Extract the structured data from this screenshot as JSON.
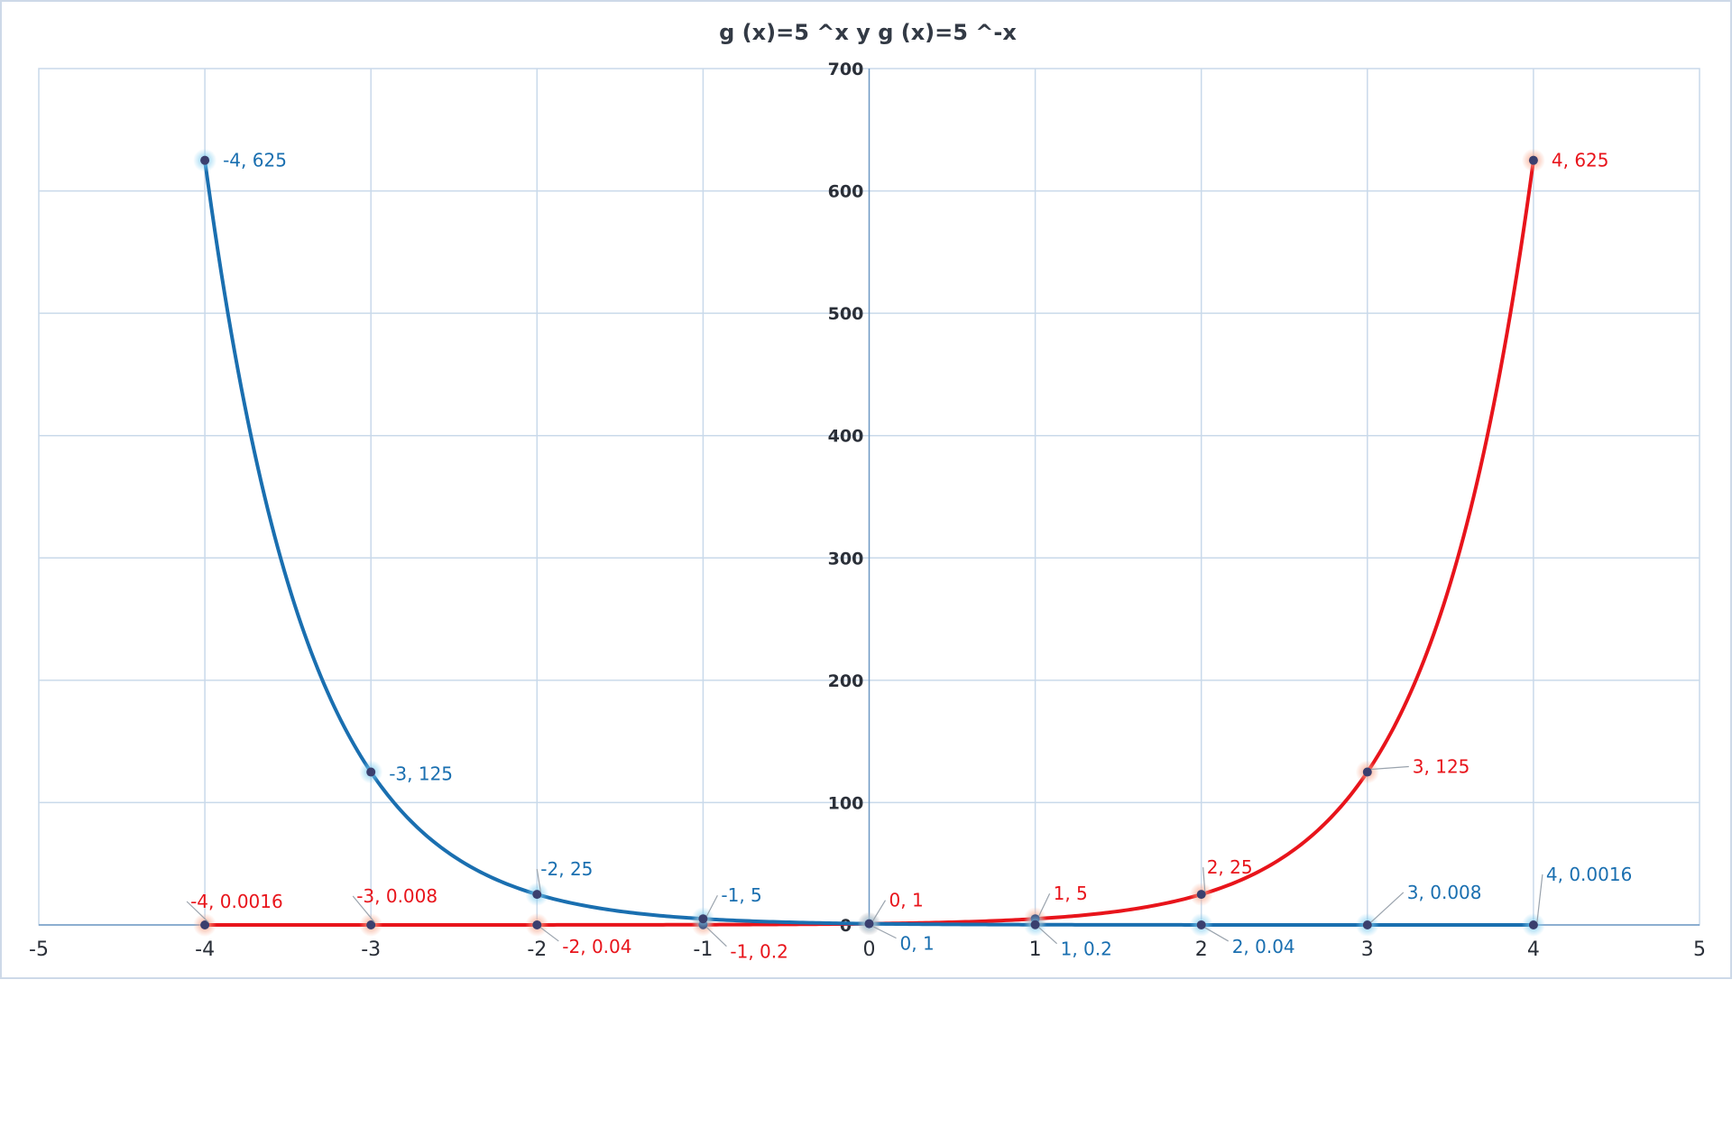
{
  "chart_data": {
    "type": "line",
    "title": "g (x)=5 ^x   y  g (x)=5 ^-x",
    "xlim": [
      -5,
      5
    ],
    "ylim": [
      0,
      700
    ],
    "x_ticks": [
      -5,
      -4,
      -3,
      -2,
      -1,
      0,
      1,
      2,
      3,
      4,
      5
    ],
    "y_ticks": [
      0,
      100,
      200,
      300,
      400,
      500,
      600,
      700
    ],
    "grid": true,
    "legend": "none",
    "series": [
      {
        "color": "#e8141b",
        "x": [
          -4,
          -3,
          -2,
          -1,
          0,
          1,
          2,
          3,
          4
        ],
        "y": [
          0.0016,
          0.008,
          0.04,
          0.2,
          1,
          5,
          25,
          125,
          625
        ],
        "labels": [
          "-4, 0.0016",
          "-3, 0.008",
          "-2, 0.04",
          "-1, 0.2",
          "0, 1",
          "1, 5",
          "2, 25",
          "3, 125",
          "4, 625"
        ]
      },
      {
        "color": "#1a6fb0",
        "x": [
          -4,
          -3,
          -2,
          -1,
          0,
          1,
          2,
          3,
          4
        ],
        "y": [
          625,
          125,
          25,
          5,
          1,
          0.2,
          0.04,
          0.008,
          0.0016
        ],
        "labels": [
          "-4, 625",
          "-3, 125",
          "-2, 25",
          "-1, 5",
          "0, 1",
          "1, 0.2",
          "2, 0.04",
          "3, 0.008",
          "4, 0.0016"
        ]
      }
    ]
  }
}
